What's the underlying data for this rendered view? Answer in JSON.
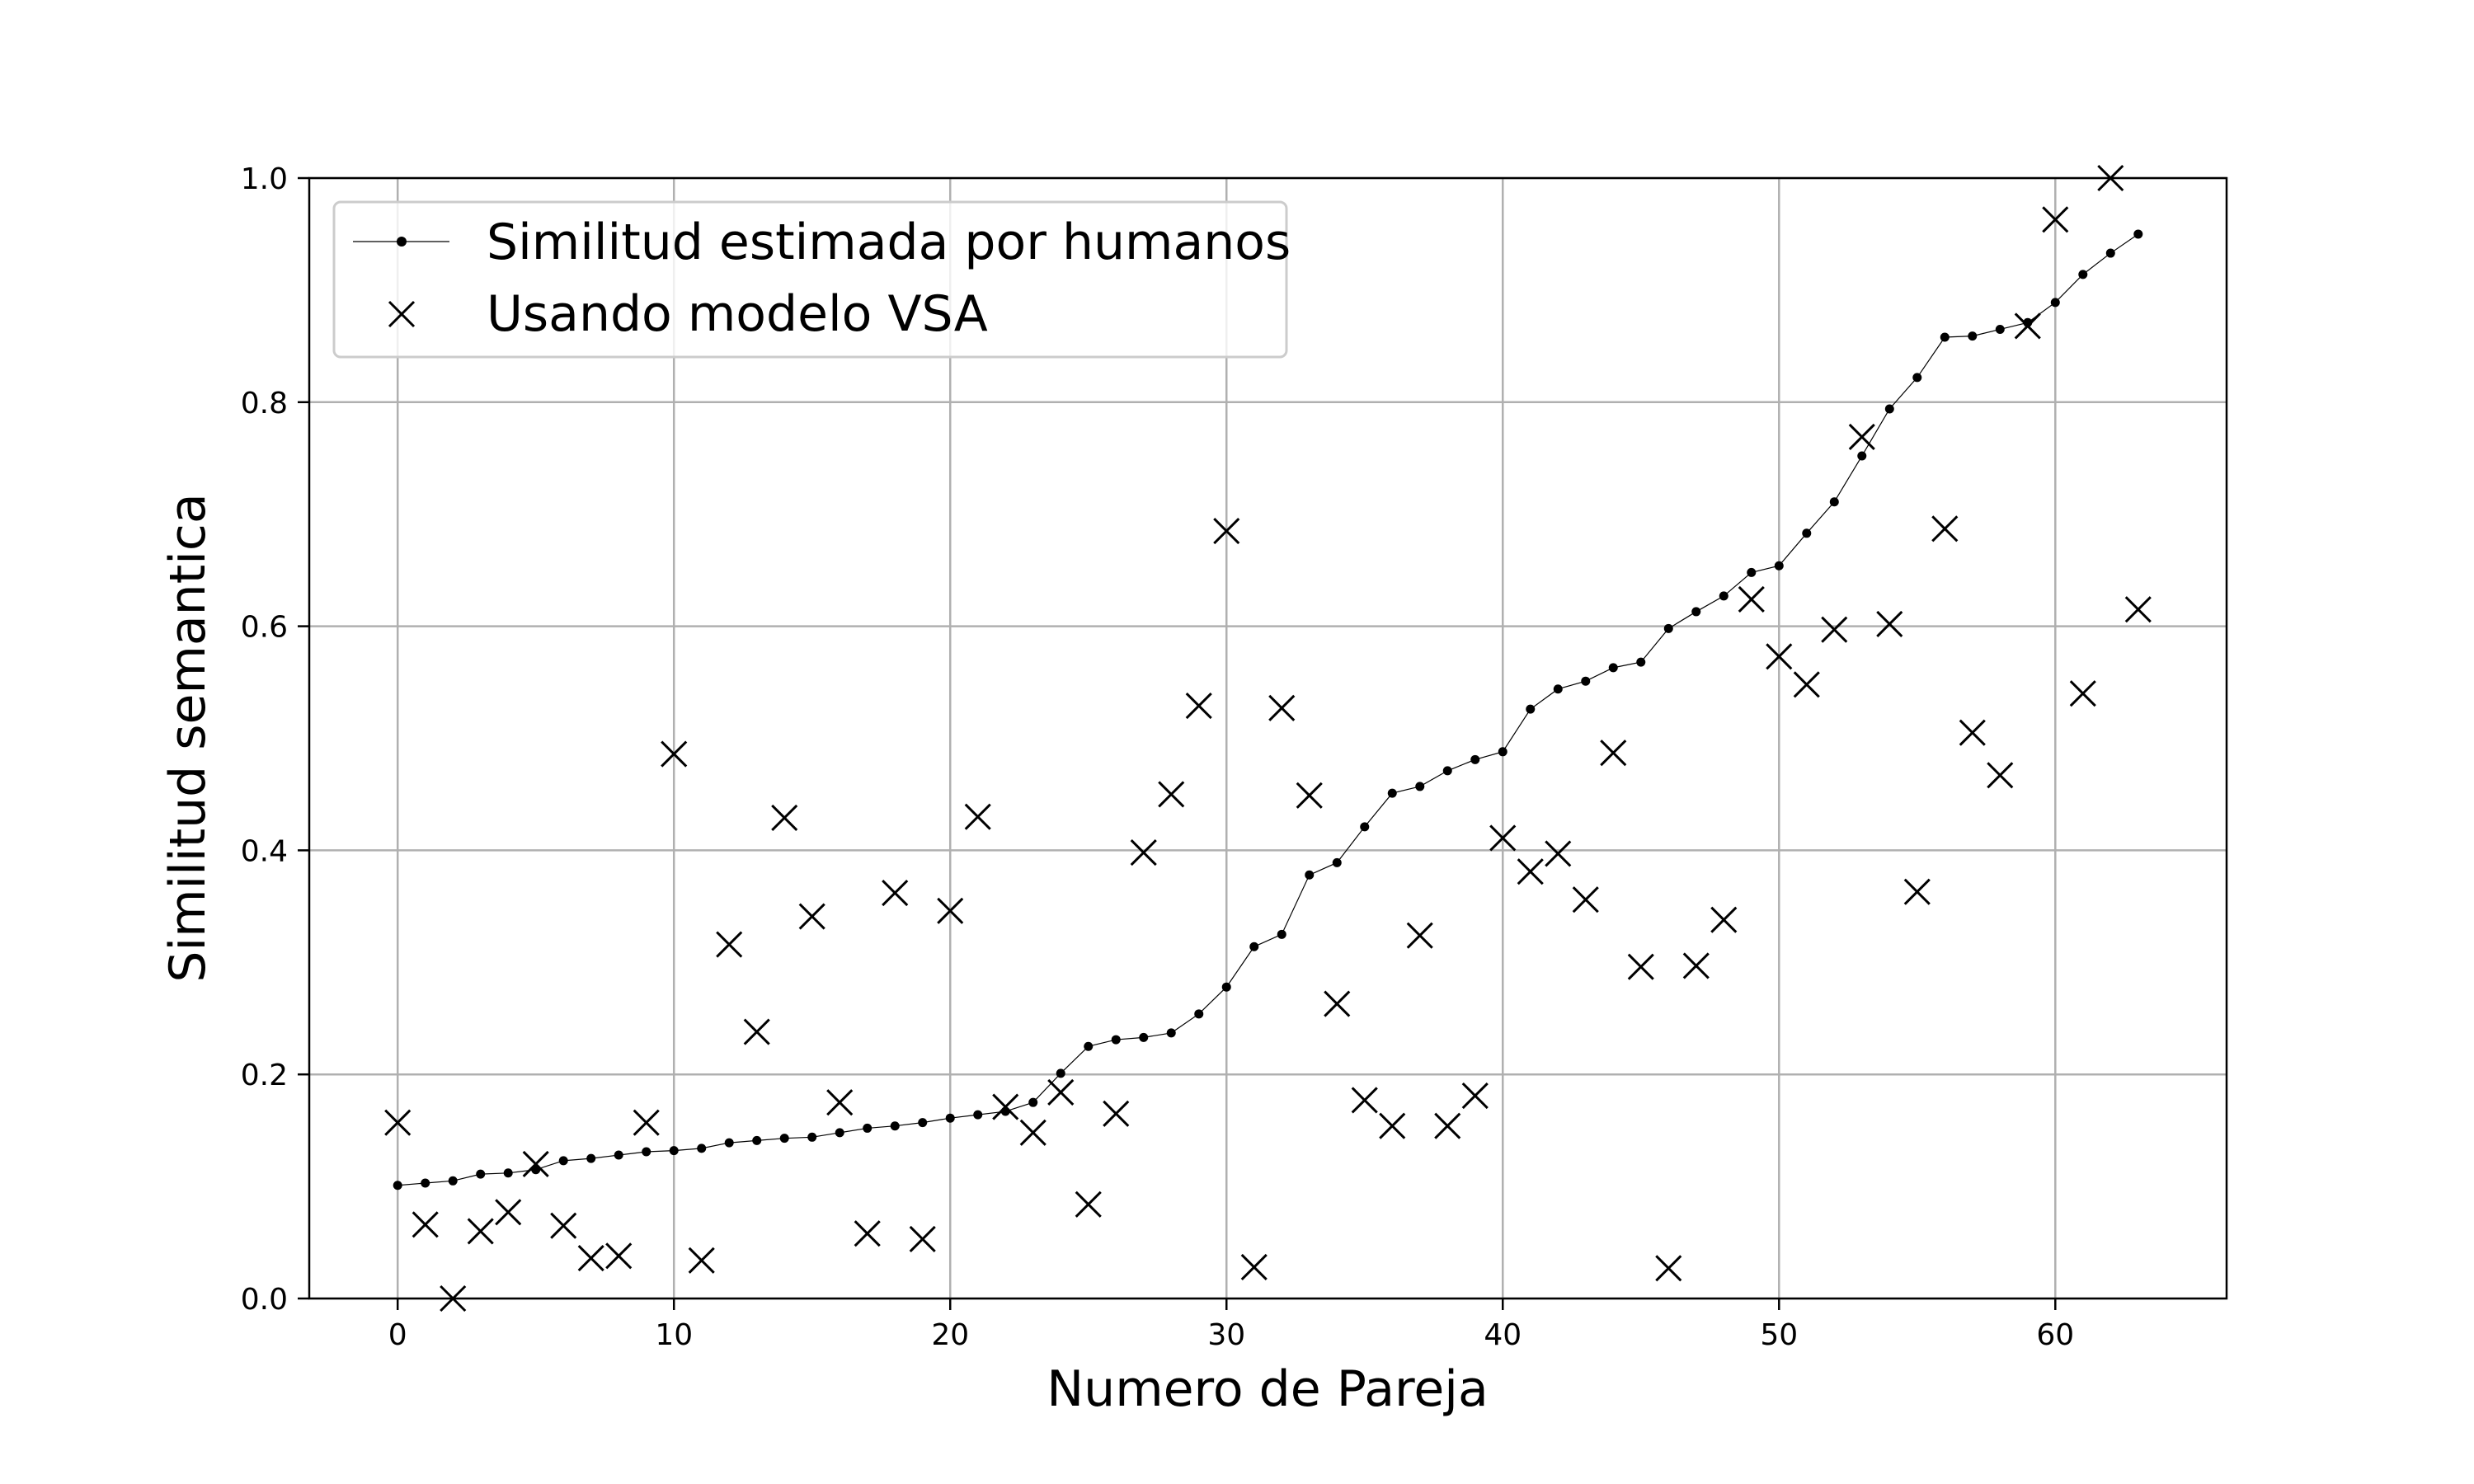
{
  "chart_data": {
    "type": "line",
    "title": "",
    "xlabel": "Numero de Pareja",
    "ylabel": "Similitud semantica",
    "xlim": [
      -3.2,
      66.2
    ],
    "ylim": [
      0,
      1.0
    ],
    "xticks": [
      0,
      10,
      20,
      30,
      40,
      50,
      60
    ],
    "yticks": [
      0.0,
      0.2,
      0.4,
      0.6,
      0.8,
      1.0
    ],
    "xtick_labels": [
      "0",
      "10",
      "20",
      "30",
      "40",
      "50",
      "60"
    ],
    "ytick_labels": [
      "0.0",
      "0.2",
      "0.4",
      "0.6",
      "0.8",
      "1.0"
    ],
    "grid": true,
    "legend_position": "top-left",
    "series": [
      {
        "name": "Similitud estimada por humanos",
        "style": "line-with-dots",
        "color": "#000000",
        "x": [
          0,
          1,
          2,
          3,
          4,
          5,
          6,
          7,
          8,
          9,
          10,
          11,
          12,
          13,
          14,
          15,
          16,
          17,
          18,
          19,
          20,
          21,
          22,
          23,
          24,
          25,
          26,
          27,
          28,
          29,
          30,
          31,
          32,
          33,
          34,
          35,
          36,
          37,
          38,
          39,
          40,
          41,
          42,
          43,
          44,
          45,
          46,
          47,
          48,
          49,
          50,
          51,
          52,
          53,
          54,
          55,
          56,
          57,
          58,
          59,
          60,
          61,
          62,
          63
        ],
        "values": [
          0.101,
          0.103,
          0.105,
          0.111,
          0.112,
          0.115,
          0.123,
          0.125,
          0.128,
          0.131,
          0.132,
          0.134,
          0.139,
          0.141,
          0.143,
          0.144,
          0.148,
          0.152,
          0.154,
          0.157,
          0.161,
          0.164,
          0.167,
          0.175,
          0.201,
          0.225,
          0.231,
          0.233,
          0.237,
          0.254,
          0.278,
          0.314,
          0.325,
          0.378,
          0.389,
          0.421,
          0.451,
          0.457,
          0.471,
          0.481,
          0.488,
          0.526,
          0.544,
          0.551,
          0.563,
          0.568,
          0.598,
          0.613,
          0.627,
          0.648,
          0.654,
          0.683,
          0.711,
          0.752,
          0.794,
          0.822,
          0.858,
          0.859,
          0.865,
          0.871,
          0.889,
          0.914,
          0.933,
          0.95
        ]
      },
      {
        "name": "Usando modelo VSA",
        "style": "x-markers",
        "color": "#000000",
        "x": [
          0,
          1,
          2,
          3,
          4,
          5,
          6,
          7,
          8,
          9,
          10,
          11,
          12,
          13,
          14,
          15,
          16,
          17,
          18,
          19,
          20,
          21,
          22,
          23,
          24,
          25,
          26,
          27,
          28,
          29,
          30,
          31,
          32,
          33,
          34,
          35,
          36,
          37,
          38,
          39,
          40,
          41,
          42,
          43,
          44,
          45,
          46,
          47,
          48,
          49,
          50,
          51,
          52,
          53,
          54,
          55,
          56,
          57,
          58,
          59,
          60,
          61,
          62,
          63
        ],
        "values": [
          0.157,
          0.066,
          0.0,
          0.06,
          0.077,
          0.12,
          0.065,
          0.036,
          0.038,
          0.157,
          0.486,
          0.034,
          0.316,
          0.238,
          0.429,
          0.341,
          0.175,
          0.058,
          0.362,
          0.053,
          0.346,
          0.43,
          0.171,
          0.148,
          0.184,
          0.084,
          0.165,
          0.398,
          0.45,
          0.529,
          0.685,
          0.028,
          0.527,
          0.449,
          0.263,
          0.177,
          0.154,
          0.324,
          0.154,
          0.181,
          0.411,
          0.381,
          0.397,
          0.356,
          0.487,
          0.296,
          0.027,
          0.297,
          0.338,
          0.624,
          0.573,
          0.548,
          0.597,
          0.769,
          0.602,
          0.363,
          0.687,
          0.505,
          0.467,
          0.868,
          0.963,
          0.54,
          1.0,
          0.615
        ]
      }
    ]
  }
}
